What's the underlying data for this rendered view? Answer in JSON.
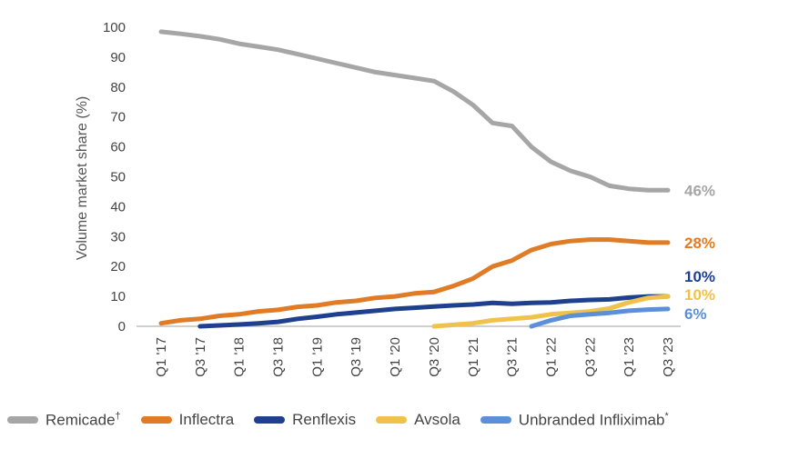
{
  "chart_data": {
    "type": "line",
    "ylabel": "Volume market share (%)",
    "xlabel": "",
    "ylim": [
      0,
      100
    ],
    "yticks": [
      0,
      10,
      20,
      30,
      40,
      50,
      60,
      70,
      80,
      90,
      100
    ],
    "x": [
      "Q1 '17",
      "Q2 '17",
      "Q3 '17",
      "Q4 '17",
      "Q1 '18",
      "Q2 '18",
      "Q3 '18",
      "Q4 '18",
      "Q1 '19",
      "Q2 '19",
      "Q3 '19",
      "Q4 '19",
      "Q1 '20",
      "Q2 '20",
      "Q3 '20",
      "Q4 '20",
      "Q1 '21",
      "Q2 '21",
      "Q3 '21",
      "Q4 '21",
      "Q1 '22",
      "Q2 '22",
      "Q3 '22",
      "Q4 '22",
      "Q1 '23",
      "Q2 '23",
      "Q3 '23"
    ],
    "xtick_labels": [
      "Q1 '17",
      "Q3 '17",
      "Q1 '18",
      "Q3 '18",
      "Q1 '19",
      "Q3 '19",
      "Q1 '20",
      "Q3 '20",
      "Q1 '21",
      "Q3 '21",
      "Q1 '22",
      "Q3 '22",
      "Q1 '23",
      "Q3 '23"
    ],
    "series": [
      {
        "name": "Remicade",
        "name_sup": "†",
        "color": "#a6a6a6",
        "end_label": "46%",
        "values": [
          98.5,
          97.8,
          97,
          96,
          94.5,
          93.5,
          92.5,
          91,
          89.5,
          88,
          86.5,
          85,
          84,
          83,
          82,
          78.5,
          74,
          68,
          67,
          60,
          55,
          52,
          50,
          47,
          46,
          45.5,
          45.5
        ]
      },
      {
        "name": "Inflectra",
        "name_sup": "",
        "color": "#e07b26",
        "end_label": "28%",
        "values": [
          1,
          2,
          2.5,
          3.5,
          4,
          5,
          5.5,
          6.5,
          7,
          8,
          8.5,
          9.5,
          10,
          11,
          11.5,
          13.5,
          16,
          20,
          22,
          25.5,
          27.5,
          28.5,
          29,
          29,
          28.5,
          28,
          28
        ]
      },
      {
        "name": "Renflexis",
        "name_sup": "",
        "color": "#1f3f8f",
        "end_label": "10%",
        "values": [
          null,
          null,
          0,
          0.3,
          0.6,
          1,
          1.5,
          2.5,
          3.2,
          4,
          4.6,
          5.2,
          5.8,
          6.2,
          6.6,
          7,
          7.3,
          7.8,
          7.5,
          7.8,
          8,
          8.5,
          8.8,
          9,
          9.6,
          10,
          10
        ]
      },
      {
        "name": "Avsola",
        "name_sup": "",
        "color": "#f0c24b",
        "end_label": "10%",
        "values": [
          null,
          null,
          null,
          null,
          null,
          null,
          null,
          null,
          null,
          null,
          null,
          null,
          null,
          null,
          0,
          0.5,
          1,
          2,
          2.5,
          3,
          4,
          4.5,
          5,
          6,
          8,
          9.5,
          10
        ]
      },
      {
        "name": "Unbranded Infliximab",
        "name_sup": "*",
        "color": "#5b8fd8",
        "end_label": "6%",
        "values": [
          null,
          null,
          null,
          null,
          null,
          null,
          null,
          null,
          null,
          null,
          null,
          null,
          null,
          null,
          null,
          null,
          null,
          null,
          null,
          0,
          2,
          3.5,
          4,
          4.5,
          5.2,
          5.6,
          5.8
        ]
      }
    ],
    "grid": false,
    "legend_position": "bottom"
  }
}
